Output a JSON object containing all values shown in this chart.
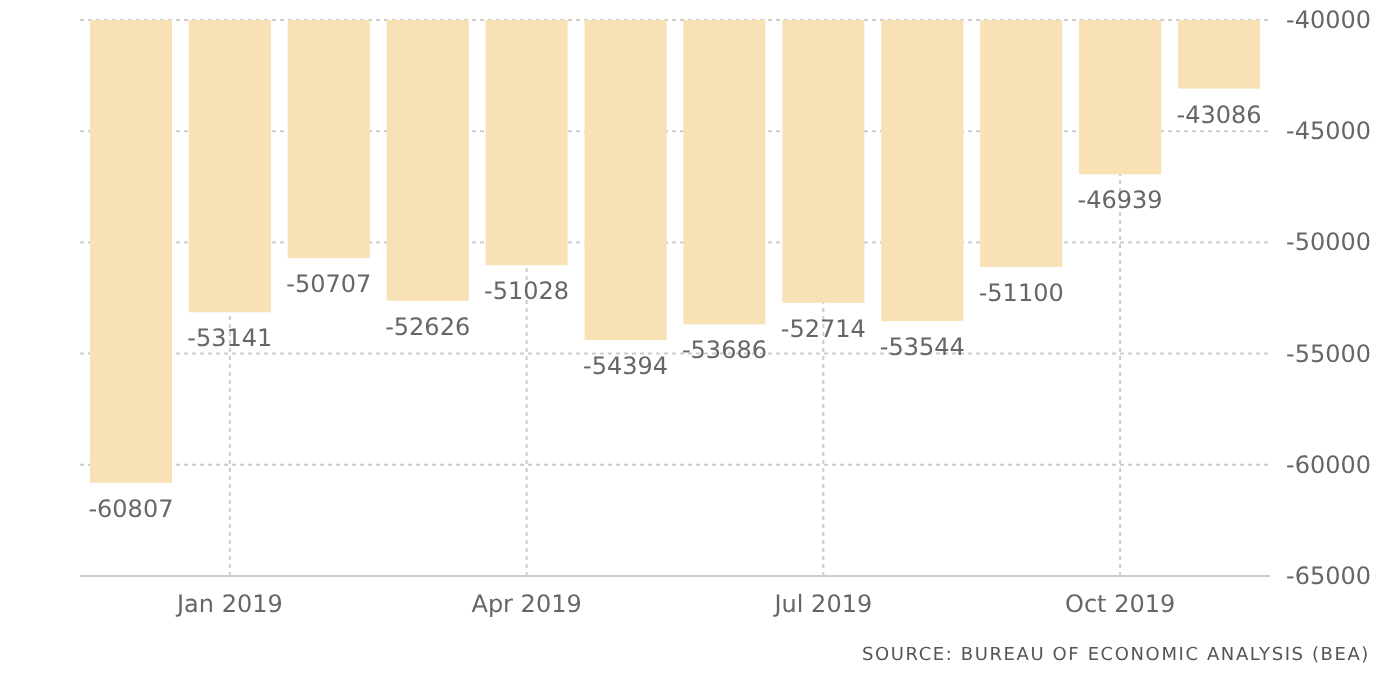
{
  "chart_data": {
    "type": "bar",
    "categories": [
      null,
      "Jan 2019",
      null,
      null,
      "Apr 2019",
      null,
      null,
      "Jul 2019",
      null,
      null,
      "Oct 2019",
      null
    ],
    "values": [
      -60807,
      -53141,
      -50707,
      -52626,
      -51028,
      -54394,
      -53686,
      -52714,
      -53544,
      -51100,
      -46939,
      -43086
    ],
    "color": "#f7e1b5",
    "ylim": [
      -65000,
      -40000
    ],
    "yticks": [
      -65000,
      -60000,
      -55000,
      -50000,
      -45000,
      -40000
    ],
    "grid": true,
    "data_labels": true,
    "annotations": [
      "SOURCE: BUREAU OF ECONOMIC ANALYSIS (BEA)"
    ]
  }
}
